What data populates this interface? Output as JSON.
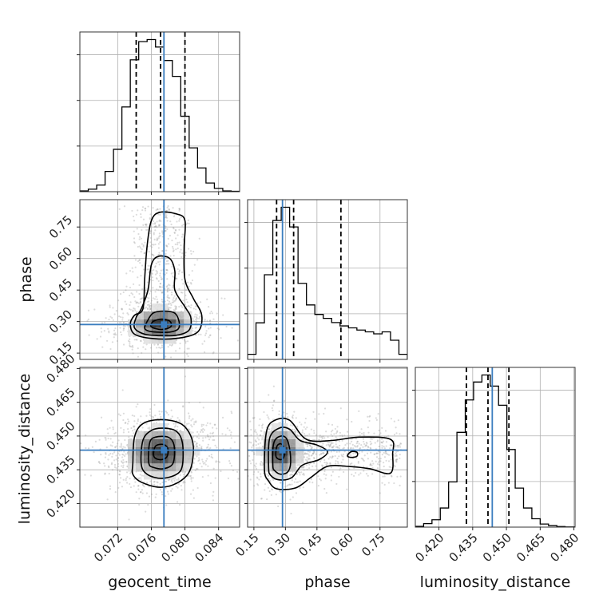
{
  "chart_data": {
    "type": "corner",
    "parameters": [
      {
        "name": "geocent_time",
        "label": "geocent_time",
        "range": [
          0.0675,
          0.0865
        ],
        "ticks": [
          0.072,
          0.076,
          0.08,
          0.084
        ],
        "tick_labels": [
          "0.072",
          "0.076",
          "0.080",
          "0.084"
        ],
        "truth": 0.0775,
        "quantiles": [
          0.0742,
          0.0771,
          0.08
        ]
      },
      {
        "name": "phase",
        "label": "phase",
        "range": [
          0.12,
          0.88
        ],
        "ticks": [
          0.15,
          0.3,
          0.45,
          0.6,
          0.75
        ],
        "tick_labels": [
          "0.15",
          "0.30",
          "0.45",
          "0.60",
          "0.75"
        ],
        "truth": 0.286,
        "quantiles": [
          0.258,
          0.339,
          0.564
        ]
      },
      {
        "name": "luminosity_distance",
        "label": "luminosity_distance",
        "range": [
          0.4095,
          0.4805
        ],
        "ticks": [
          0.42,
          0.435,
          0.45,
          0.465,
          0.48
        ],
        "tick_labels": [
          "0.420",
          "0.435",
          "0.450",
          "0.465",
          "0.480"
        ],
        "truth": 0.4437,
        "quantiles": [
          0.4322,
          0.4418,
          0.4511
        ]
      }
    ],
    "histograms": [
      {
        "parameter": "geocent_time",
        "bin_edges": [
          0.0675,
          0.0685,
          0.0695,
          0.0705,
          0.0715,
          0.0725,
          0.0735,
          0.0745,
          0.0755,
          0.0765,
          0.0775,
          0.0785,
          0.0795,
          0.0805,
          0.0815,
          0.0825,
          0.0835,
          0.0845,
          0.0855,
          0.0865
        ],
        "counts": [
          0.4,
          1.2,
          3.2,
          9.8,
          20.5,
          41.0,
          63.8,
          72.6,
          73.6,
          70.0,
          63.5,
          55.8,
          36.5,
          21.2,
          11.5,
          4.2,
          1.6,
          0.4,
          0.2
        ]
      },
      {
        "parameter": "phase",
        "bin_edges": [
          0.12,
          0.16,
          0.2,
          0.24,
          0.28,
          0.32,
          0.36,
          0.4,
          0.44,
          0.48,
          0.52,
          0.56,
          0.6,
          0.64,
          0.68,
          0.72,
          0.76,
          0.8,
          0.84,
          0.88
        ],
        "counts": [
          2.3,
          16.6,
          38.4,
          63.0,
          69.0,
          60.1,
          34.5,
          24.7,
          20.4,
          18.6,
          16.7,
          15.2,
          14.3,
          13.3,
          12.5,
          11.6,
          12.5,
          8.7,
          2.3
        ]
      },
      {
        "parameter": "luminosity_distance",
        "bin_edges": [
          0.4095,
          0.4132,
          0.4169,
          0.4206,
          0.4243,
          0.428,
          0.4317,
          0.4354,
          0.4391,
          0.4428,
          0.4465,
          0.4502,
          0.4539,
          0.4576,
          0.4613,
          0.465,
          0.4687,
          0.4724,
          0.4761,
          0.4805
        ],
        "counts": [
          0.4,
          1.8,
          3.8,
          9.8,
          23.2,
          48.6,
          65.2,
          74.4,
          78.0,
          72.3,
          62.5,
          39.8,
          20.0,
          9.8,
          4.3,
          1.6,
          0.8,
          0.3,
          0.1
        ]
      }
    ],
    "pairs": [
      {
        "x": "geocent_time",
        "y": "phase",
        "mode": [
          0.0772,
          0.288
        ],
        "spread": [
          0.0019,
          0.04
        ],
        "contours": [
          [
            [
              0.075,
              0.36
            ],
            [
              0.0752,
              0.5
            ],
            [
              0.0755,
              0.66
            ],
            [
              0.076,
              0.78
            ],
            [
              0.077,
              0.82
            ],
            [
              0.079,
              0.812
            ],
            [
              0.08,
              0.78
            ],
            [
              0.0799,
              0.65
            ],
            [
              0.08,
              0.5
            ],
            [
              0.081,
              0.41
            ],
            [
              0.082,
              0.33
            ],
            [
              0.0815,
              0.25
            ],
            [
              0.079,
              0.22
            ],
            [
              0.076,
              0.22
            ],
            [
              0.074,
              0.24
            ],
            [
              0.0735,
              0.29
            ],
            [
              0.074,
              0.33
            ]
          ],
          [
            [
              0.074,
              0.27
            ],
            [
              0.0742,
              0.32
            ],
            [
              0.0748,
              0.36
            ],
            [
              0.0756,
              0.45
            ],
            [
              0.076,
              0.57
            ],
            [
              0.0768,
              0.61
            ],
            [
              0.0782,
              0.6
            ],
            [
              0.0788,
              0.54
            ],
            [
              0.0788,
              0.45
            ],
            [
              0.08,
              0.37
            ],
            [
              0.0807,
              0.32
            ],
            [
              0.0805,
              0.26
            ],
            [
              0.079,
              0.235
            ],
            [
              0.077,
              0.233
            ],
            [
              0.0752,
              0.24
            ]
          ],
          [
            [
              0.0752,
              0.27
            ],
            [
              0.0755,
              0.3
            ],
            [
              0.0762,
              0.34
            ],
            [
              0.0775,
              0.35
            ],
            [
              0.0788,
              0.34
            ],
            [
              0.0793,
              0.3
            ],
            [
              0.0792,
              0.265
            ],
            [
              0.0782,
              0.25
            ],
            [
              0.0766,
              0.25
            ],
            [
              0.0756,
              0.256
            ]
          ],
          [
            [
              0.076,
              0.275
            ],
            [
              0.0762,
              0.3
            ],
            [
              0.0772,
              0.312
            ],
            [
              0.0782,
              0.302
            ],
            [
              0.0783,
              0.275
            ],
            [
              0.0772,
              0.262
            ]
          ]
        ]
      },
      {
        "x": "geocent_time",
        "y": "luminosity_distance",
        "mode": [
          0.0771,
          0.4428
        ],
        "spread": [
          0.0021,
          0.0055
        ],
        "contours": [
          [
            [
              0.0738,
              0.4378
            ],
            [
              0.074,
              0.4495
            ],
            [
              0.075,
              0.4555
            ],
            [
              0.0772,
              0.4573
            ],
            [
              0.0795,
              0.4555
            ],
            [
              0.0807,
              0.45
            ],
            [
              0.081,
              0.443
            ],
            [
              0.0805,
              0.434
            ],
            [
              0.079,
              0.429
            ],
            [
              0.077,
              0.4272
            ],
            [
              0.0748,
              0.4295
            ],
            [
              0.0738,
              0.433
            ]
          ],
          [
            [
              0.0748,
              0.4375
            ],
            [
              0.075,
              0.448
            ],
            [
              0.076,
              0.4525
            ],
            [
              0.0775,
              0.4535
            ],
            [
              0.079,
              0.452
            ],
            [
              0.0797,
              0.447
            ],
            [
              0.0797,
              0.437
            ],
            [
              0.079,
              0.433
            ],
            [
              0.0772,
              0.4312
            ],
            [
              0.0755,
              0.433
            ]
          ],
          [
            [
              0.0757,
              0.438
            ],
            [
              0.0758,
              0.447
            ],
            [
              0.0765,
              0.4495
            ],
            [
              0.078,
              0.4495
            ],
            [
              0.0787,
              0.446
            ],
            [
              0.0786,
              0.438
            ],
            [
              0.0775,
              0.4355
            ],
            [
              0.0763,
              0.436
            ]
          ],
          [
            [
              0.0763,
              0.441
            ],
            [
              0.0765,
              0.4455
            ],
            [
              0.0775,
              0.4462
            ],
            [
              0.078,
              0.444
            ],
            [
              0.0778,
              0.4405
            ],
            [
              0.077,
              0.4395
            ]
          ]
        ]
      },
      {
        "x": "phase",
        "y": "luminosity_distance",
        "mode": [
          0.278,
          0.443
        ],
        "spread": [
          0.05,
          0.0055
        ],
        "contours": [
          [
            [
              0.2,
              0.435
            ],
            [
              0.21,
              0.452
            ],
            [
              0.25,
              0.457
            ],
            [
              0.32,
              0.457
            ],
            [
              0.4,
              0.4485
            ],
            [
              0.52,
              0.448
            ],
            [
              0.65,
              0.4495
            ],
            [
              0.8,
              0.4485
            ],
            [
              0.81,
              0.442
            ],
            [
              0.8,
              0.4335
            ],
            [
              0.7,
              0.4355
            ],
            [
              0.6,
              0.4365
            ],
            [
              0.5,
              0.4365
            ],
            [
              0.42,
              0.4315
            ],
            [
              0.35,
              0.427
            ],
            [
              0.26,
              0.4265
            ],
            [
              0.22,
              0.43
            ]
          ],
          [
            [
              0.22,
              0.436
            ],
            [
              0.225,
              0.449
            ],
            [
              0.27,
              0.4535
            ],
            [
              0.32,
              0.453
            ],
            [
              0.37,
              0.448
            ],
            [
              0.45,
              0.446
            ],
            [
              0.5,
              0.443
            ],
            [
              0.46,
              0.4395
            ],
            [
              0.38,
              0.437
            ],
            [
              0.33,
              0.4315
            ],
            [
              0.27,
              0.4305
            ],
            [
              0.23,
              0.4325
            ]
          ],
          [
            [
              0.24,
              0.437
            ],
            [
              0.245,
              0.447
            ],
            [
              0.28,
              0.45
            ],
            [
              0.31,
              0.448
            ],
            [
              0.325,
              0.44
            ],
            [
              0.315,
              0.4345
            ],
            [
              0.28,
              0.433
            ],
            [
              0.25,
              0.4345
            ]
          ],
          [
            [
              0.255,
              0.441
            ],
            [
              0.26,
              0.4455
            ],
            [
              0.28,
              0.4465
            ],
            [
              0.295,
              0.444
            ],
            [
              0.292,
              0.4405
            ],
            [
              0.275,
              0.4395
            ]
          ],
          [
            [
              0.595,
              0.4412
            ],
            [
              0.612,
              0.443
            ],
            [
              0.64,
              0.4428
            ],
            [
              0.64,
              0.441
            ],
            [
              0.612,
              0.4405
            ]
          ]
        ]
      }
    ]
  }
}
